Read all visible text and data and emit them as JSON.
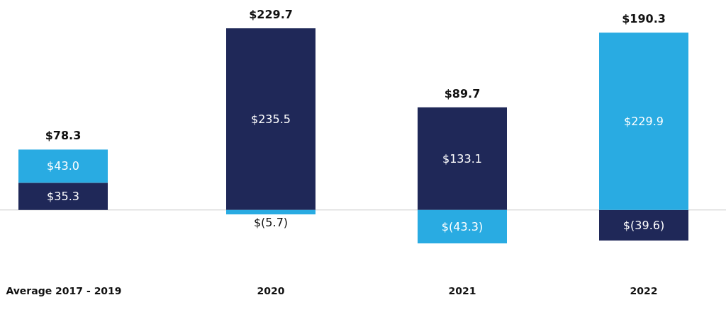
{
  "chart_data": {
    "type": "bar",
    "stacked": true,
    "categories": [
      "Average 2017 - 2019",
      "2020",
      "2021",
      "2022"
    ],
    "series": [
      {
        "color": "#1f2858",
        "values": [
          35.3,
          235.5,
          133.1,
          -39.6
        ],
        "value_labels": [
          "$35.3",
          "$235.5",
          "$133.1",
          "$(39.6)"
        ]
      },
      {
        "color": "#29abe2",
        "values": [
          43.0,
          -5.7,
          -43.3,
          229.9
        ],
        "value_labels": [
          "$43.0",
          "$(5.7)",
          "$(43.3)",
          "$229.9"
        ]
      }
    ],
    "totals": [
      "$78.3",
      "$229.7",
      "$89.7",
      "$190.3"
    ]
  }
}
